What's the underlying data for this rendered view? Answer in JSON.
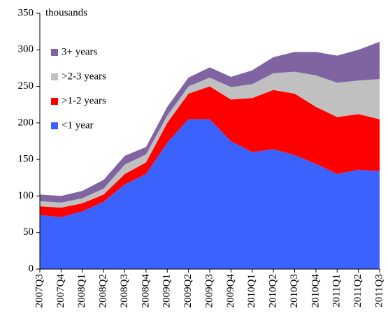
{
  "chart_data": {
    "type": "stacked-area",
    "annotation": "thousands",
    "categories": [
      "2007Q3",
      "2007Q4",
      "2008Q1",
      "2008Q2",
      "2008Q3",
      "2008Q4",
      "2009Q1",
      "2009Q2",
      "2009Q3",
      "2009Q4",
      "2010Q1",
      "2010Q2",
      "2010Q3",
      "2010Q4",
      "2011Q1",
      "2011Q2",
      "2011Q3"
    ],
    "series": [
      {
        "name": "<1 year",
        "color": "#3b62fd",
        "values": [
          74,
          71,
          79,
          92,
          116,
          130,
          173,
          205,
          205,
          175,
          160,
          164,
          156,
          144,
          130,
          136,
          134
        ]
      },
      {
        "name": ">1-2 years",
        "color": "#ff0000",
        "values": [
          12,
          13,
          11,
          10,
          14,
          16,
          27,
          35,
          45,
          57,
          74,
          81,
          84,
          78,
          78,
          76,
          71
        ]
      },
      {
        "name": ">2-3 years",
        "color": "#c0c0c0",
        "values": [
          7,
          7,
          7,
          8,
          13,
          11,
          10,
          10,
          12,
          17,
          19,
          23,
          30,
          43,
          47,
          46,
          55
        ]
      },
      {
        "name": "3+ years",
        "color": "#8064a2",
        "values": [
          9,
          9,
          10,
          12,
          12,
          10,
          12,
          12,
          14,
          14,
          19,
          22,
          27,
          32,
          37,
          42,
          51
        ]
      }
    ],
    "ylim": [
      0,
      350
    ],
    "yticks": [
      0,
      50,
      100,
      150,
      200,
      250,
      300,
      350
    ]
  }
}
